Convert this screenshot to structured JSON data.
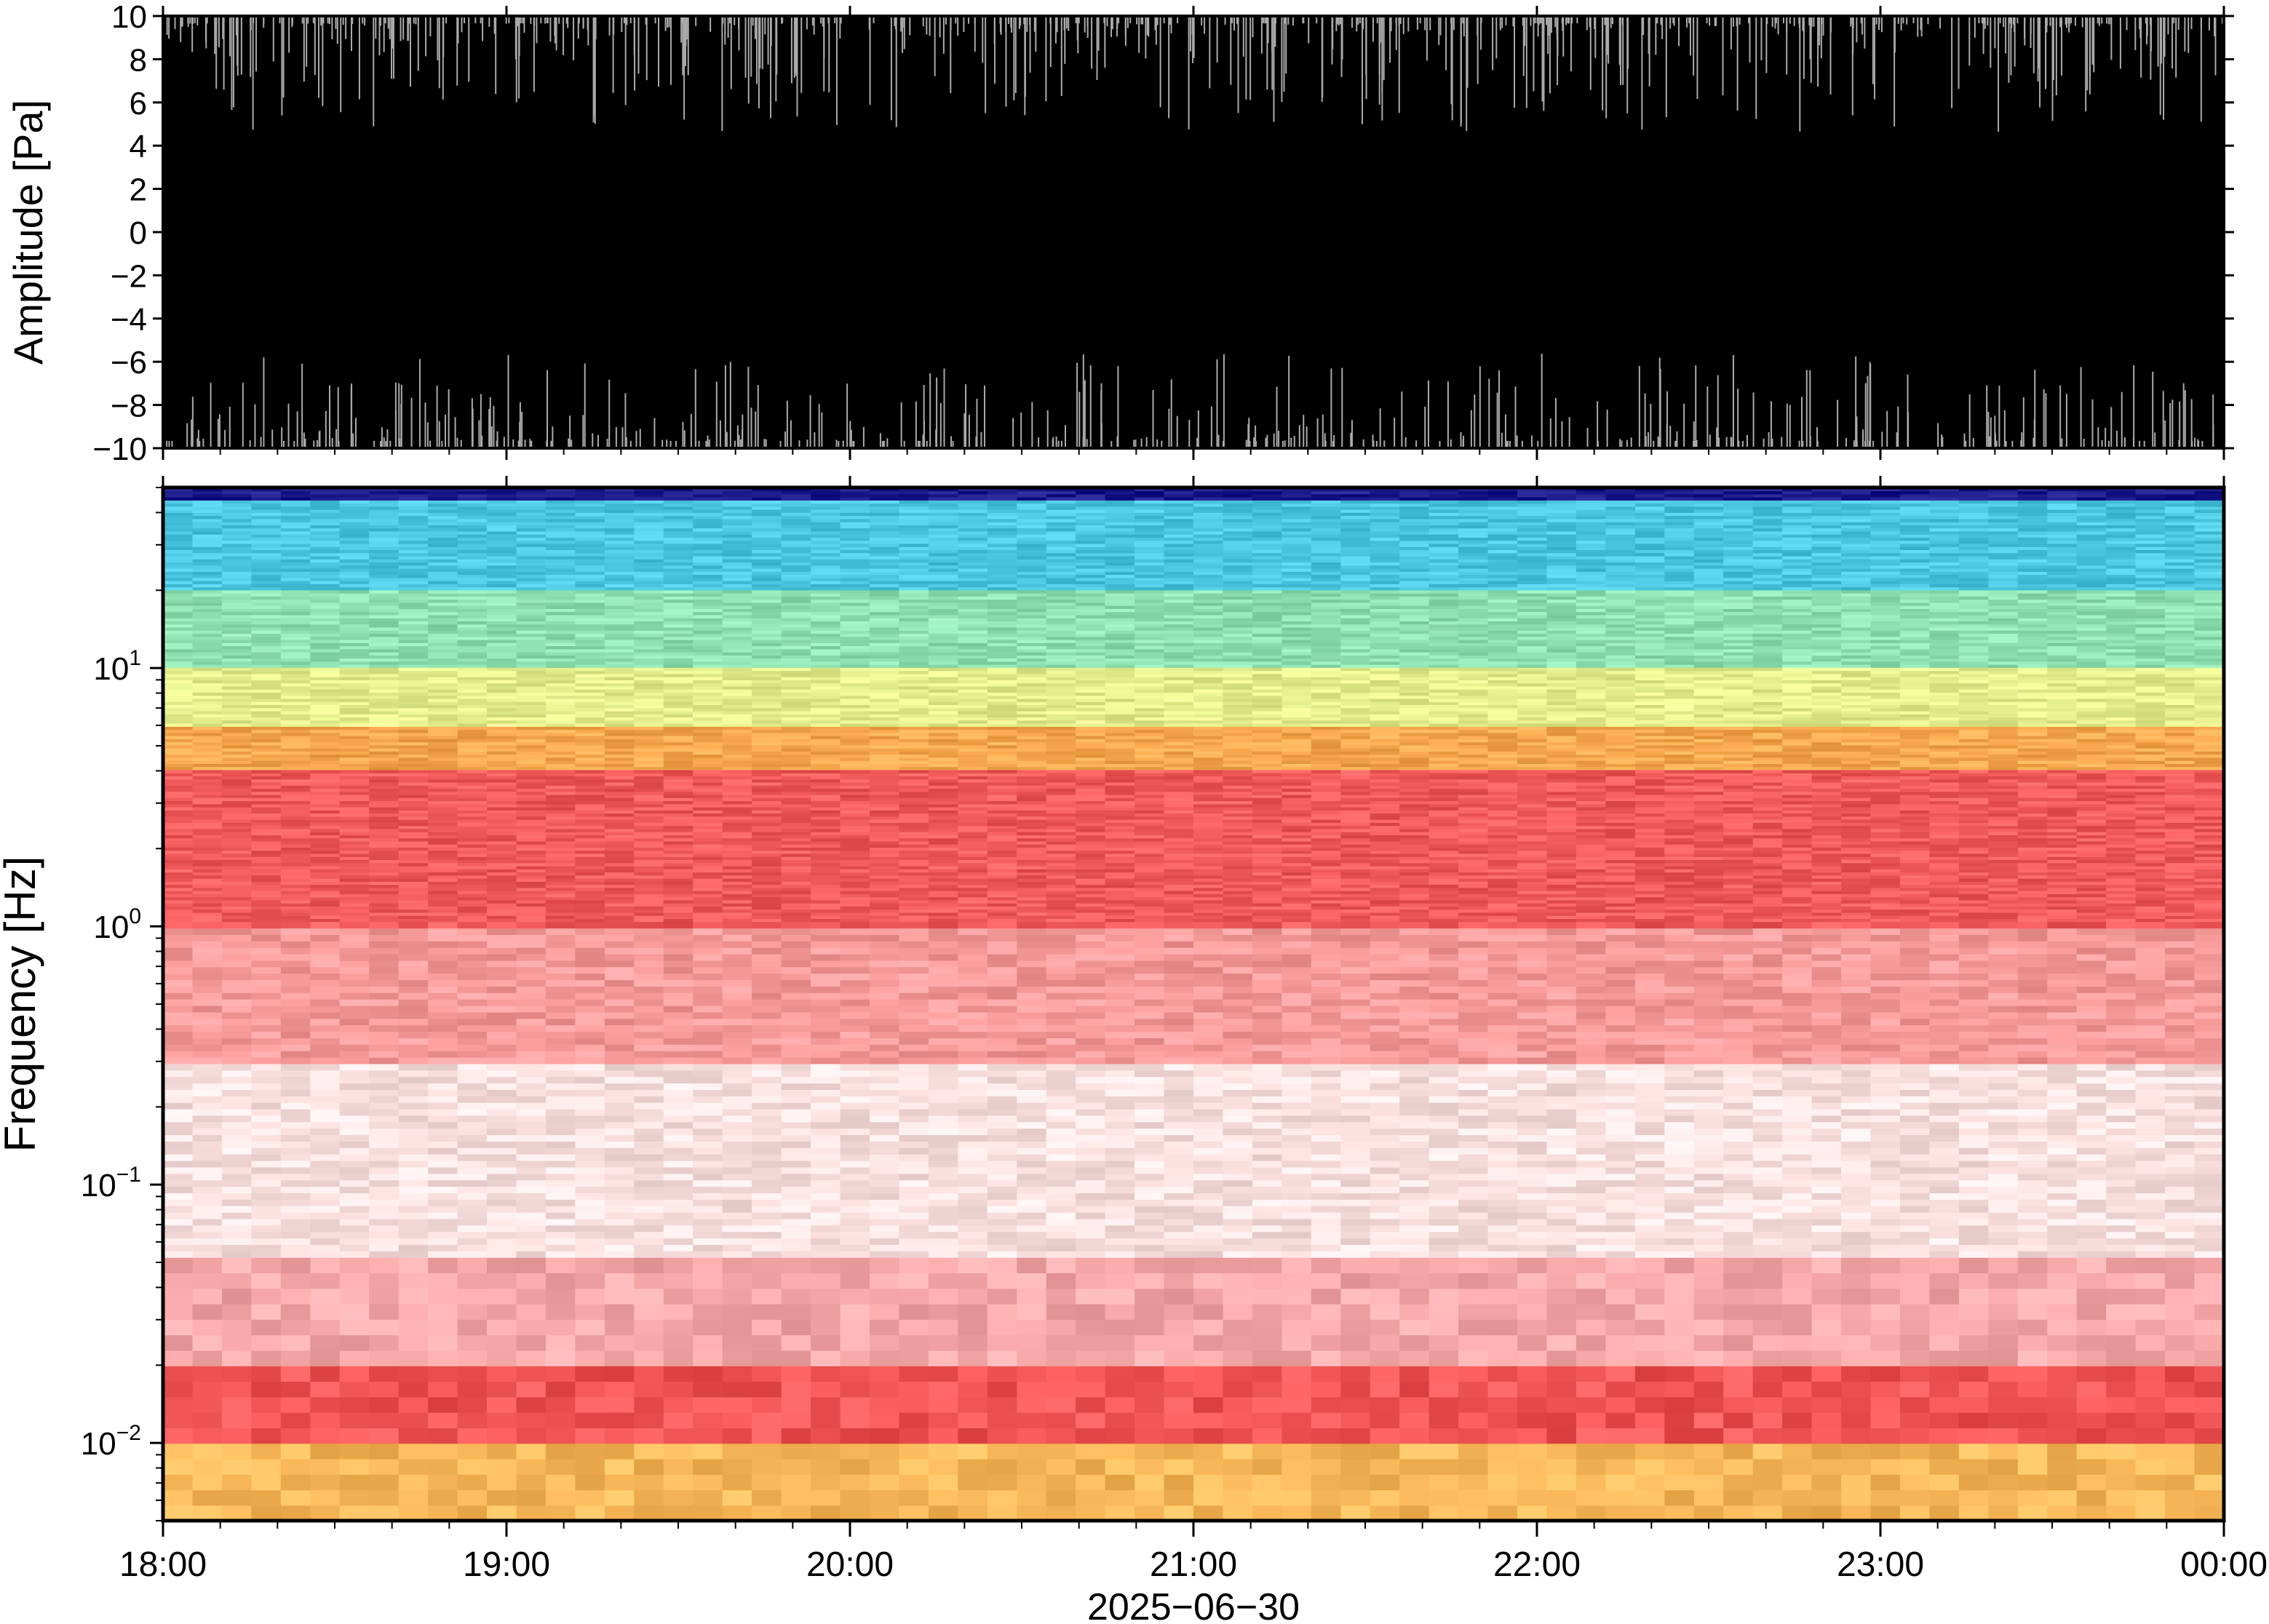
{
  "chart_data": [
    {
      "type": "line",
      "panel": "waveform",
      "ylabel": "Amplitude [Pa]",
      "ylim": [
        -10,
        10
      ],
      "yticks": [
        10,
        8,
        6,
        4,
        2,
        0,
        -2,
        -4,
        -6,
        -8,
        -10
      ],
      "ytick_labels": [
        "10",
        "8",
        "6",
        "4",
        "2",
        "0",
        "−2",
        "−4",
        "−6",
        "−8",
        "−10"
      ],
      "x_range": [
        "18:00",
        "00:00"
      ],
      "grid": false,
      "description_values": {
        "clipped": true,
        "fill_color": "#000000",
        "spike_color": "#aaaaaa"
      }
    },
    {
      "type": "heatmap",
      "panel": "spectrogram",
      "ylabel": "Frequency [Hz]",
      "yscale": "log",
      "ylim": [
        0.005,
        50
      ],
      "yticks": [
        10,
        1,
        0.1,
        0.01
      ],
      "ytick_labels": [
        {
          "base": "10",
          "exp": "1"
        },
        {
          "base": "10",
          "exp": "0"
        },
        {
          "base": "10",
          "exp": "−1"
        },
        {
          "base": "10",
          "exp": "−2"
        }
      ],
      "xticks": [
        "18:00",
        "19:00",
        "20:00",
        "21:00",
        "22:00",
        "23:00",
        "00:00"
      ],
      "xlabel": "2025−06−30",
      "grid": false,
      "colormap_bands": [
        {
          "freq_min": 45,
          "freq_max": 50,
          "color": "#1a1a8a"
        },
        {
          "freq_min": 20,
          "freq_max": 45,
          "color": "#4cc7e0"
        },
        {
          "freq_min": 10,
          "freq_max": 20,
          "color": "#8fe0b0"
        },
        {
          "freq_min": 6,
          "freq_max": 10,
          "color": "#e4ee8c"
        },
        {
          "freq_min": 4,
          "freq_max": 6,
          "color": "#f7a84f"
        },
        {
          "freq_min": 1,
          "freq_max": 4,
          "color": "#f05a5a"
        },
        {
          "freq_min": 0.3,
          "freq_max": 1,
          "color": "#f79a9a"
        },
        {
          "freq_min": 0.05,
          "freq_max": 0.3,
          "color": "#fbe0e0"
        },
        {
          "freq_min": 0.02,
          "freq_max": 0.05,
          "color": "#f7a8a8"
        },
        {
          "freq_min": 0.01,
          "freq_max": 0.02,
          "color": "#ef5555"
        },
        {
          "freq_min": 0.005,
          "freq_max": 0.01,
          "color": "#f9b85a"
        }
      ]
    }
  ]
}
